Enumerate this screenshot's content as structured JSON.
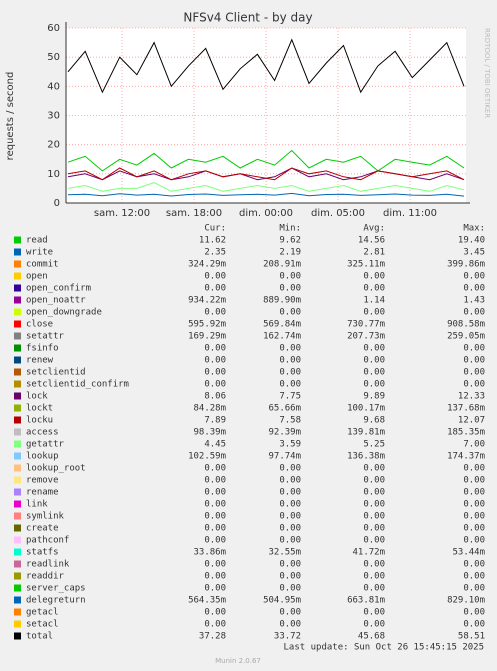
{
  "chart_data": {
    "type": "line",
    "title": "NFSv4 Client - by day",
    "y_label": "requests / second",
    "ylim": [
      0,
      60
    ],
    "yticks": [
      0,
      10,
      20,
      30,
      40,
      50,
      60
    ],
    "grid": true,
    "xtick_labels": [
      "sam. 12:00",
      "sam. 18:00",
      "dim. 00:00",
      "dim. 05:00",
      "dim. 11:00"
    ],
    "stat_headers": [
      "Cur:",
      "Min:",
      "Avg:",
      "Max:"
    ],
    "series": [
      {
        "name": "read",
        "color": "#00CC00",
        "stats": [
          "11.62",
          "9.62",
          "14.56",
          "19.40"
        ],
        "values": [
          14,
          16,
          11,
          15,
          13,
          17,
          12,
          15,
          14,
          16,
          12,
          15,
          13,
          18,
          12,
          15,
          14,
          16,
          11,
          15,
          14,
          13,
          16,
          12
        ]
      },
      {
        "name": "write",
        "color": "#0066B3",
        "stats": [
          "2.35",
          "2.19",
          "2.81",
          "3.45"
        ],
        "values": [
          2.8,
          3,
          2.5,
          3.2,
          2.7,
          3,
          2.4,
          2.9,
          3.1,
          2.6,
          2.8,
          3,
          2.7,
          3.3,
          2.5,
          2.9,
          3,
          2.6,
          2.8,
          3.1,
          2.7,
          2.6,
          3,
          2.35
        ]
      },
      {
        "name": "commit",
        "color": "#FF8000",
        "stats": [
          "324.29m",
          "208.91m",
          "325.11m",
          "399.86m"
        ]
      },
      {
        "name": "open",
        "color": "#FFCC00",
        "stats": [
          "0.00",
          "0.00",
          "0.00",
          "0.00"
        ]
      },
      {
        "name": "open_confirm",
        "color": "#330099",
        "stats": [
          "0.00",
          "0.00",
          "0.00",
          "0.00"
        ]
      },
      {
        "name": "open_noattr",
        "color": "#990099",
        "stats": [
          "934.22m",
          "889.90m",
          "1.14",
          "1.43"
        ]
      },
      {
        "name": "open_downgrade",
        "color": "#CCFF00",
        "stats": [
          "0.00",
          "0.00",
          "0.00",
          "0.00"
        ]
      },
      {
        "name": "close",
        "color": "#FF0000",
        "stats": [
          "595.92m",
          "569.84m",
          "730.77m",
          "908.58m"
        ]
      },
      {
        "name": "setattr",
        "color": "#808080",
        "stats": [
          "169.29m",
          "162.74m",
          "207.73m",
          "259.05m"
        ]
      },
      {
        "name": "fsinfo",
        "color": "#008F00",
        "stats": [
          "0.00",
          "0.00",
          "0.00",
          "0.00"
        ]
      },
      {
        "name": "renew",
        "color": "#00487D",
        "stats": [
          "0.00",
          "0.00",
          "0.00",
          "0.00"
        ]
      },
      {
        "name": "setclientid",
        "color": "#B35A00",
        "stats": [
          "0.00",
          "0.00",
          "0.00",
          "0.00"
        ]
      },
      {
        "name": "setclientid_confirm",
        "color": "#B38F00",
        "stats": [
          "0.00",
          "0.00",
          "0.00",
          "0.00"
        ]
      },
      {
        "name": "lock",
        "color": "#6B006B",
        "stats": [
          "8.06",
          "7.75",
          "9.89",
          "12.33"
        ],
        "values": [
          9,
          10,
          8,
          11,
          9,
          10,
          8,
          9,
          11,
          9,
          10,
          8,
          9,
          12,
          9,
          10,
          8,
          9,
          11,
          10,
          9,
          8,
          10,
          8
        ]
      },
      {
        "name": "lockt",
        "color": "#8FB300",
        "stats": [
          "84.28m",
          "65.66m",
          "100.17m",
          "137.68m"
        ]
      },
      {
        "name": "locku",
        "color": "#B30000",
        "stats": [
          "7.89",
          "7.58",
          "9.68",
          "12.07"
        ],
        "values": [
          10,
          11,
          8,
          12,
          9,
          11,
          8,
          10,
          11,
          9,
          10,
          9,
          8,
          12,
          10,
          11,
          9,
          8,
          11,
          10,
          9,
          10,
          11,
          8
        ]
      },
      {
        "name": "access",
        "color": "#BEBEBE",
        "stats": [
          "98.39m",
          "92.39m",
          "139.81m",
          "185.35m"
        ]
      },
      {
        "name": "getattr",
        "color": "#80FF80",
        "stats": [
          "4.45",
          "3.59",
          "5.25",
          "7.00"
        ],
        "values": [
          5,
          6,
          4,
          5,
          5,
          7,
          4,
          5,
          6,
          4,
          5,
          6,
          5,
          6,
          4,
          5,
          6,
          4,
          5,
          6,
          5,
          4,
          6,
          4.5
        ]
      },
      {
        "name": "lookup",
        "color": "#80C9FF",
        "stats": [
          "102.59m",
          "97.74m",
          "136.38m",
          "174.37m"
        ]
      },
      {
        "name": "lookup_root",
        "color": "#FFC080",
        "stats": [
          "0.00",
          "0.00",
          "0.00",
          "0.00"
        ]
      },
      {
        "name": "remove",
        "color": "#FFE680",
        "stats": [
          "0.00",
          "0.00",
          "0.00",
          "0.00"
        ]
      },
      {
        "name": "rename",
        "color": "#AA80FF",
        "stats": [
          "0.00",
          "0.00",
          "0.00",
          "0.00"
        ]
      },
      {
        "name": "link",
        "color": "#EE00CC",
        "stats": [
          "0.00",
          "0.00",
          "0.00",
          "0.00"
        ]
      },
      {
        "name": "symlink",
        "color": "#FF8080",
        "stats": [
          "0.00",
          "0.00",
          "0.00",
          "0.00"
        ]
      },
      {
        "name": "create",
        "color": "#666600",
        "stats": [
          "0.00",
          "0.00",
          "0.00",
          "0.00"
        ]
      },
      {
        "name": "pathconf",
        "color": "#FFBFFF",
        "stats": [
          "0.00",
          "0.00",
          "0.00",
          "0.00"
        ]
      },
      {
        "name": "statfs",
        "color": "#00FFCC",
        "stats": [
          "33.86m",
          "32.55m",
          "41.72m",
          "53.44m"
        ]
      },
      {
        "name": "readlink",
        "color": "#CC6699",
        "stats": [
          "0.00",
          "0.00",
          "0.00",
          "0.00"
        ]
      },
      {
        "name": "readdir",
        "color": "#999900",
        "stats": [
          "0.00",
          "0.00",
          "0.00",
          "0.00"
        ]
      },
      {
        "name": "server_caps",
        "color": "#00CC00",
        "stats": [
          "0.00",
          "0.00",
          "0.00",
          "0.00"
        ]
      },
      {
        "name": "delegreturn",
        "color": "#0066B3",
        "stats": [
          "564.35m",
          "504.95m",
          "663.81m",
          "829.10m"
        ]
      },
      {
        "name": "getacl",
        "color": "#FF8000",
        "stats": [
          "0.00",
          "0.00",
          "0.00",
          "0.00"
        ]
      },
      {
        "name": "setacl",
        "color": "#FFCC00",
        "stats": [
          "0.00",
          "0.00",
          "0.00",
          "0.00"
        ]
      },
      {
        "name": "total",
        "color": "#000000",
        "stats": [
          "37.28",
          "33.72",
          "45.68",
          "58.51"
        ],
        "values": [
          45,
          52,
          38,
          50,
          44,
          55,
          40,
          47,
          53,
          39,
          46,
          51,
          42,
          56,
          41,
          48,
          54,
          38,
          47,
          52,
          43,
          49,
          55,
          40
        ]
      }
    ]
  },
  "footer": {
    "last_update": "Last update: Sun Oct 26 15:45:15 2025",
    "version": "Munin 2.0.67",
    "watermark": "RRDTOOL / TOBI OETIKER"
  }
}
